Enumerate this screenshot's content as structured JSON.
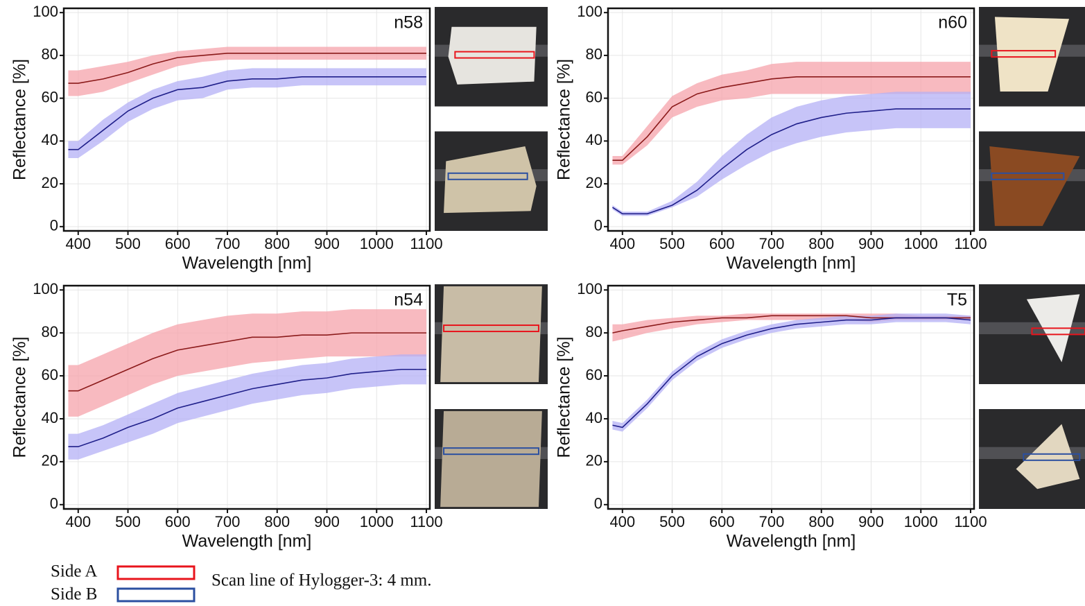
{
  "chart_data": [
    {
      "type": "line",
      "label": "n58",
      "xlabel": "Wavelength [nm]",
      "ylabel": "Reflectance [%]",
      "x": [
        380,
        400,
        450,
        500,
        550,
        600,
        650,
        700,
        750,
        800,
        850,
        900,
        950,
        1000,
        1050,
        1100
      ],
      "xlim": [
        371,
        1107
      ],
      "xticks": [
        400,
        500,
        600,
        700,
        800,
        900,
        1000,
        1100
      ],
      "ylim": [
        -2,
        102
      ],
      "yticks": [
        0,
        20,
        40,
        60,
        80,
        100
      ],
      "grid": true,
      "series": [
        {
          "name": "Side A",
          "color": "#8b1a1a",
          "band_color": "#f5a3ab",
          "scan_color": "#e8141c",
          "values": [
            67,
            67,
            69,
            72,
            76,
            79,
            80,
            81,
            81,
            81,
            81,
            81,
            81,
            81,
            81,
            81
          ],
          "lower": [
            61,
            61,
            63,
            67,
            71,
            75,
            77,
            78,
            78,
            78,
            78,
            78,
            78,
            78,
            78,
            78
          ],
          "upper": [
            73,
            73,
            75,
            77,
            80,
            82,
            83,
            84,
            84,
            84,
            84,
            84,
            84,
            84,
            84,
            84
          ]
        },
        {
          "name": "Side B",
          "color": "#1f1f8a",
          "band_color": "#b4b0f5",
          "scan_color": "#2b4fa0",
          "values": [
            36,
            36,
            45,
            54,
            60,
            64,
            65,
            68,
            69,
            69,
            70,
            70,
            70,
            70,
            70,
            70
          ],
          "lower": [
            32,
            32,
            40,
            49,
            55,
            59,
            60,
            64,
            65,
            65,
            66,
            66,
            66,
            66,
            66,
            66
          ],
          "upper": [
            40,
            40,
            50,
            58,
            64,
            68,
            70,
            73,
            74,
            74,
            74,
            74,
            74,
            74,
            74,
            74
          ]
        }
      ]
    },
    {
      "type": "line",
      "label": "n60",
      "xlabel": "Wavelength [nm]",
      "ylabel": "Reflectance [%]",
      "x": [
        380,
        400,
        450,
        500,
        550,
        600,
        650,
        700,
        750,
        800,
        850,
        900,
        950,
        1000,
        1050,
        1100
      ],
      "xlim": [
        371,
        1107
      ],
      "xticks": [
        400,
        500,
        600,
        700,
        800,
        900,
        1000,
        1100
      ],
      "ylim": [
        -2,
        102
      ],
      "yticks": [
        0,
        20,
        40,
        60,
        80,
        100
      ],
      "grid": true,
      "series": [
        {
          "name": "Side A",
          "color": "#8b1a1a",
          "band_color": "#f5a3ab",
          "scan_color": "#e8141c",
          "values": [
            31,
            31,
            42,
            56,
            62,
            65,
            67,
            69,
            70,
            70,
            70,
            70,
            70,
            70,
            70,
            70
          ],
          "lower": [
            29,
            29,
            38,
            51,
            56,
            59,
            60,
            62,
            62,
            62,
            62,
            62,
            62,
            62,
            62,
            62
          ],
          "upper": [
            33,
            33,
            47,
            61,
            67,
            71,
            73,
            76,
            77,
            77,
            77,
            77,
            77,
            77,
            77,
            77
          ]
        },
        {
          "name": "Side B",
          "color": "#1f1f8a",
          "band_color": "#b4b0f5",
          "scan_color": "#2b4fa0",
          "values": [
            9,
            6,
            6,
            10,
            17,
            27,
            36,
            43,
            48,
            51,
            53,
            54,
            55,
            55,
            55,
            55
          ],
          "lower": [
            8,
            5,
            5,
            9,
            14,
            22,
            29,
            35,
            39,
            42,
            44,
            45,
            46,
            46,
            46,
            46
          ],
          "upper": [
            10,
            7,
            7,
            12,
            21,
            33,
            43,
            51,
            56,
            59,
            61,
            62,
            63,
            63,
            63,
            63
          ]
        }
      ]
    },
    {
      "type": "line",
      "label": "n54",
      "xlabel": "Wavelength [nm]",
      "ylabel": "Reflectance [%]",
      "x": [
        380,
        400,
        450,
        500,
        550,
        600,
        650,
        700,
        750,
        800,
        850,
        900,
        950,
        1000,
        1050,
        1100
      ],
      "xlim": [
        371,
        1107
      ],
      "xticks": [
        400,
        500,
        600,
        700,
        800,
        900,
        1000,
        1100
      ],
      "ylim": [
        -2,
        102
      ],
      "yticks": [
        0,
        20,
        40,
        60,
        80,
        100
      ],
      "grid": true,
      "series": [
        {
          "name": "Side A",
          "color": "#8b1a1a",
          "band_color": "#f5a3ab",
          "scan_color": "#e8141c",
          "values": [
            53,
            53,
            58,
            63,
            68,
            72,
            74,
            76,
            78,
            78,
            79,
            79,
            80,
            80,
            80,
            80
          ],
          "lower": [
            41,
            41,
            46,
            51,
            56,
            60,
            62,
            64,
            66,
            67,
            68,
            69,
            69,
            69,
            69,
            69
          ],
          "upper": [
            65,
            65,
            70,
            75,
            80,
            84,
            86,
            88,
            89,
            89,
            90,
            90,
            91,
            91,
            91,
            91
          ]
        },
        {
          "name": "Side B",
          "color": "#1f1f8a",
          "band_color": "#b4b0f5",
          "scan_color": "#2b4fa0",
          "values": [
            27,
            27,
            31,
            36,
            40,
            45,
            48,
            51,
            54,
            56,
            58,
            59,
            61,
            62,
            63,
            63
          ],
          "lower": [
            21,
            21,
            25,
            29,
            33,
            38,
            41,
            44,
            47,
            49,
            51,
            52,
            54,
            55,
            56,
            56
          ],
          "upper": [
            33,
            33,
            37,
            42,
            47,
            52,
            55,
            58,
            61,
            63,
            65,
            66,
            68,
            69,
            70,
            70
          ]
        }
      ]
    },
    {
      "type": "line",
      "label": "T5",
      "xlabel": "Wavelength [nm]",
      "ylabel": "Reflectance [%]",
      "x": [
        380,
        400,
        450,
        500,
        550,
        600,
        650,
        700,
        750,
        800,
        850,
        900,
        950,
        1000,
        1050,
        1100
      ],
      "xlim": [
        371,
        1107
      ],
      "xticks": [
        400,
        500,
        600,
        700,
        800,
        900,
        1000,
        1100
      ],
      "ylim": [
        -2,
        102
      ],
      "yticks": [
        0,
        20,
        40,
        60,
        80,
        100
      ],
      "grid": true,
      "series": [
        {
          "name": "Side A",
          "color": "#8b1a1a",
          "band_color": "#f5a3ab",
          "scan_color": "#e8141c",
          "values": [
            80,
            81,
            83,
            85,
            86,
            87,
            87,
            88,
            88,
            88,
            88,
            87,
            87,
            87,
            87,
            87
          ],
          "lower": [
            76,
            77,
            80,
            82,
            84,
            85,
            86,
            86,
            86,
            86,
            86,
            85,
            86,
            86,
            86,
            86
          ],
          "upper": [
            84,
            84,
            86,
            87,
            88,
            88,
            89,
            89,
            89,
            89,
            89,
            89,
            89,
            88,
            88,
            88
          ]
        },
        {
          "name": "Side B",
          "color": "#1f1f8a",
          "band_color": "#b4b0f5",
          "scan_color": "#2b4fa0",
          "values": [
            37,
            36,
            47,
            60,
            69,
            75,
            79,
            82,
            84,
            85,
            86,
            86,
            87,
            87,
            87,
            86
          ],
          "lower": [
            35,
            34,
            45,
            58,
            67,
            73,
            77,
            80,
            82,
            83,
            84,
            84,
            85,
            85,
            85,
            84
          ],
          "upper": [
            39,
            38,
            49,
            62,
            71,
            77,
            81,
            84,
            86,
            87,
            88,
            88,
            89,
            89,
            89,
            88
          ]
        }
      ]
    }
  ],
  "caption": "Scan line of Hylogger-3: 4 mm."
}
